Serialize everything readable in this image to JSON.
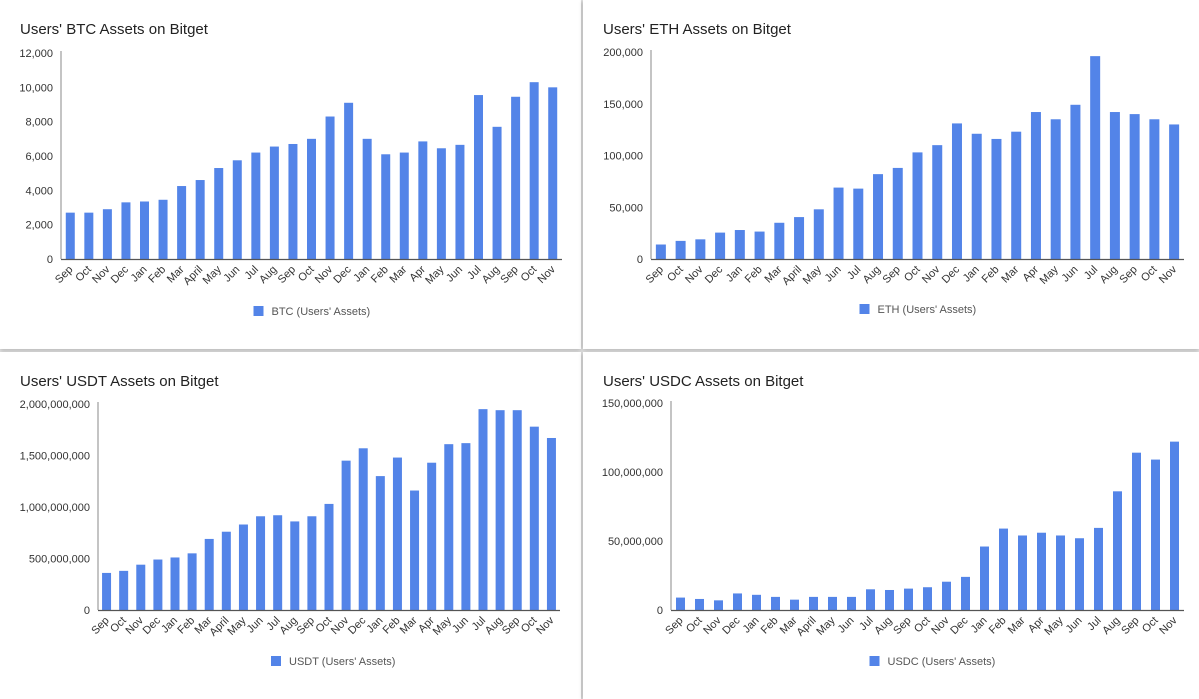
{
  "colors": {
    "bar": "#5384e8",
    "axis": "#555555",
    "panel": "#ffffff"
  },
  "chart_data": [
    {
      "type": "bar",
      "title": "Users' BTC Assets on Bitget",
      "legend": "BTC (Users' Assets)",
      "categories": [
        "Sep",
        "Oct",
        "Nov",
        "Dec",
        "Jan",
        "Feb",
        "Mar",
        "April",
        "May",
        "Jun",
        "Jul",
        "Aug",
        "Sep",
        "Oct",
        "Nov",
        "Dec",
        "Jan",
        "Feb",
        "Mar",
        "Apr",
        "May",
        "Jun",
        "Jul",
        "Aug",
        "Sep",
        "Oct",
        "Nov"
      ],
      "values": [
        2700,
        2700,
        2900,
        3300,
        3350,
        3450,
        4250,
        4600,
        5300,
        5750,
        6200,
        6550,
        6700,
        7000,
        8300,
        9100,
        7000,
        6100,
        6200,
        6850,
        6450,
        6650,
        9550,
        7700,
        9450,
        10300,
        10000
      ],
      "ylim": [
        0,
        12000
      ],
      "yticks": [
        0,
        2000,
        4000,
        6000,
        8000,
        10000,
        12000
      ],
      "ytick_labels": [
        "0",
        "2,000",
        "4,000",
        "6,000",
        "8,000",
        "10,000",
        "12,000"
      ],
      "xlabel": "",
      "ylabel": ""
    },
    {
      "type": "bar",
      "title": "Users' ETH Assets on Bitget",
      "legend": "ETH (Users' Assets)",
      "categories": [
        "Sep",
        "Oct",
        "Nov",
        "Dec",
        "Jan",
        "Feb",
        "Mar",
        "April",
        "May",
        "Jun",
        "Jul",
        "Aug",
        "Sep",
        "Oct",
        "Nov",
        "Dec",
        "Jan",
        "Feb",
        "Mar",
        "Apr",
        "May",
        "Jun",
        "Jul",
        "Aug",
        "Sep",
        "Oct",
        "Nov"
      ],
      "values": [
        14000,
        17500,
        19000,
        25500,
        28000,
        26500,
        35000,
        40500,
        48000,
        69000,
        68000,
        82000,
        88000,
        103000,
        110000,
        131000,
        121000,
        116000,
        123000,
        142000,
        135000,
        149000,
        196000,
        142000,
        140000,
        135000,
        130000
      ],
      "ylim": [
        0,
        200000
      ],
      "yticks": [
        0,
        50000,
        100000,
        150000,
        200000
      ],
      "ytick_labels": [
        "0",
        "50,000",
        "100,000",
        "150,000",
        "200,000"
      ],
      "xlabel": "",
      "ylabel": ""
    },
    {
      "type": "bar",
      "title": "Users' USDT Assets on Bitget",
      "legend": "USDT (Users' Assets)",
      "categories": [
        "Sep",
        "Oct",
        "Nov",
        "Dec",
        "Jan",
        "Feb",
        "Mar",
        "April",
        "May",
        "Jun",
        "Jul",
        "Aug",
        "Sep",
        "Oct",
        "Nov",
        "Dec",
        "Jan",
        "Feb",
        "Mar",
        "Apr",
        "May",
        "Jun",
        "Jul",
        "Aug",
        "Sep",
        "Oct",
        "Nov"
      ],
      "values": [
        360000000,
        380000000,
        440000000,
        490000000,
        510000000,
        550000000,
        690000000,
        760000000,
        830000000,
        910000000,
        920000000,
        860000000,
        910000000,
        1030000000,
        1450000000,
        1570000000,
        1300000000,
        1480000000,
        1160000000,
        1430000000,
        1610000000,
        1620000000,
        1950000000,
        1940000000,
        1940000000,
        1780000000,
        1670000000
      ],
      "ylim": [
        0,
        2000000000
      ],
      "yticks": [
        0,
        500000000,
        1000000000,
        1500000000,
        2000000000
      ],
      "ytick_labels": [
        "0",
        "500,000,000",
        "1,000,000,000",
        "1,500,000,000",
        "2,000,000,000"
      ],
      "xlabel": "",
      "ylabel": ""
    },
    {
      "type": "bar",
      "title": "Users' USDC Assets on Bitget",
      "legend": "USDC (Users' Assets)",
      "categories": [
        "Sep",
        "Oct",
        "Nov",
        "Dec",
        "Jan",
        "Feb",
        "Mar",
        "April",
        "May",
        "Jun",
        "Jul",
        "Aug",
        "Sep",
        "Oct",
        "Nov",
        "Dec",
        "Jan",
        "Feb",
        "Mar",
        "Apr",
        "May",
        "Jun",
        "Jul",
        "Aug",
        "Sep",
        "Oct",
        "Nov"
      ],
      "values": [
        9000,
        8000,
        7000,
        12000,
        11000,
        9500,
        7500,
        9500,
        9500,
        9500,
        15000,
        14500,
        15500,
        16500,
        20500,
        24000,
        46000,
        59000,
        54000,
        56000,
        54000,
        52000,
        59500,
        86000,
        114000,
        109000,
        122000
      ],
      "value_unit": "thousand",
      "ylim": [
        0,
        150000
      ],
      "yticks": [
        0,
        50000,
        100000,
        150000
      ],
      "ytick_labels": [
        "0",
        "50,000,000",
        "100,000,000",
        "150,000,000"
      ],
      "xlabel": "",
      "ylabel": ""
    }
  ]
}
